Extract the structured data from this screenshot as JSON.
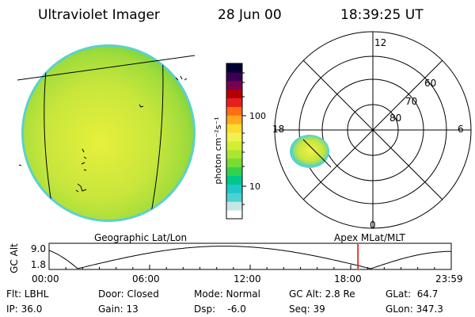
{
  "header": {
    "instrument": "Ultraviolet Imager",
    "date": "28 Jun 00",
    "time": "18:39:25 UT"
  },
  "colorbar": {
    "unit_label": "photon cm⁻²s⁻¹",
    "tick_100": "100",
    "tick_10": "10",
    "colors": [
      "#ffffff",
      "#c8e6e6",
      "#4bd2d2",
      "#1ec8c8",
      "#00c88c",
      "#32d250",
      "#78dc32",
      "#aae632",
      "#d2ee32",
      "#f0f050",
      "#fadc32",
      "#ffaa1e",
      "#ff6e14",
      "#e61e1e",
      "#b40000",
      "#780050",
      "#3c0050",
      "#000032"
    ]
  },
  "polar_plot": {
    "mlt_labels": {
      "top": "12",
      "left": "18",
      "right": "6",
      "bottom": "0"
    },
    "mlat_labels": [
      "60",
      "70",
      "80"
    ]
  },
  "timeline": {
    "left_caption": "Geographic Lat/Lon",
    "right_caption": "Apex MLat/MLT",
    "axis_label": "GC Alt",
    "y_top": "9.0",
    "y_bottom": "1.8",
    "x_ticks": [
      "00:00",
      "06:00",
      "12:00",
      "18:00",
      "23:59"
    ],
    "current_time_marker_fraction": 0.768
  },
  "info": {
    "flt": "Flt: LBHL",
    "ip": "IP: 36.0",
    "door": "Door: Closed",
    "gain": "Gain: 13",
    "mode": "Mode: Normal",
    "dsp": "Dsp:    -6.0",
    "gcalt": "GC Alt: 2.8 Re",
    "seq": "Seq: 39",
    "glat": "GLat:  64.7",
    "glon": "GLon: 347.3"
  }
}
